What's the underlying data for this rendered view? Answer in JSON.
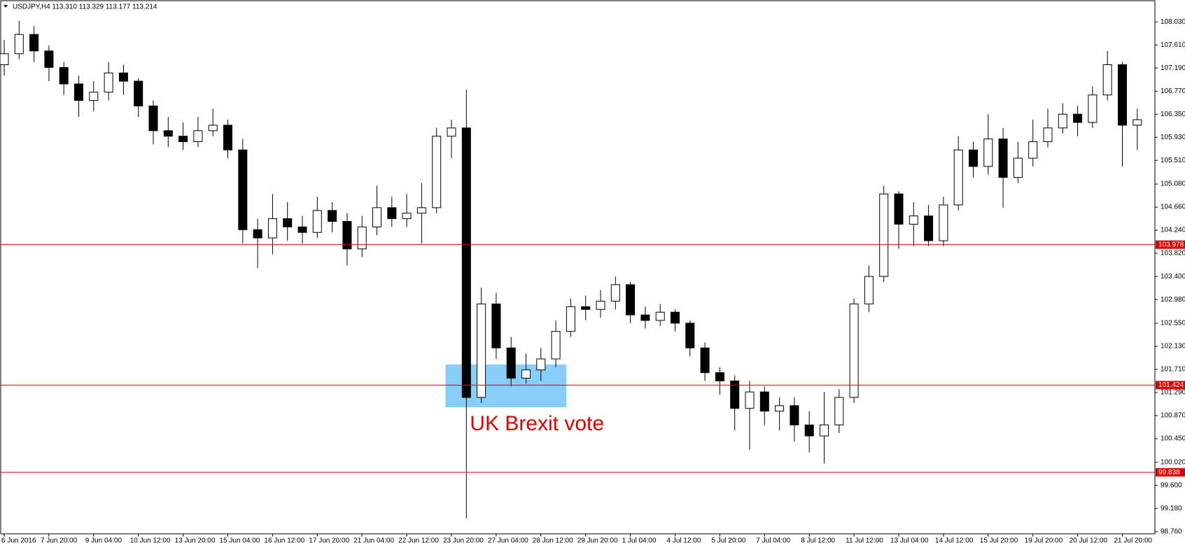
{
  "chart_data": {
    "type": "candlestick",
    "title": "USDJPY,H4  113.310 113.329 113.177 113.214",
    "annotation": "UK Brexit vote",
    "categories": [
      "6 Jun 2016",
      null,
      null,
      "7 Jun 20:00",
      null,
      null,
      "9 Jun 04:00",
      null,
      null,
      "10 Jun 12:00",
      null,
      null,
      "13 Jun 20:00",
      null,
      null,
      "15 Jun 04:00",
      null,
      null,
      "16 Jun 12:00",
      null,
      null,
      "17 Jun 20:00",
      null,
      null,
      "21 Jun 04:00",
      null,
      null,
      "22 Jun 12:00",
      null,
      null,
      "23 Jun 20:00",
      null,
      null,
      "27 Jun 04:00",
      null,
      null,
      "28 Jun 12:00",
      null,
      null,
      "29 Jun 20:00",
      null,
      null,
      "1 Jul 04:00",
      null,
      null,
      "4 Jul 12:00",
      null,
      null,
      "5 Jul 20:00",
      null,
      null,
      "7 Jul 04:00",
      null,
      null,
      "8 Jul 12:00",
      null,
      null,
      "11 Jul 12:00",
      null,
      null,
      "13 Jul 04:00",
      null,
      null,
      "14 Jul 12:00",
      null,
      null,
      "15 Jul 20:00",
      null,
      null,
      "19 Jul 20:00",
      null,
      null,
      "20 Jul 12:00",
      null,
      null,
      "21 Jul 20:00",
      null
    ],
    "open": [
      107.25,
      107.45,
      107.8,
      107.5,
      107.2,
      106.9,
      106.6,
      106.75,
      107.1,
      106.95,
      106.5,
      106.05,
      105.95,
      105.85,
      106.05,
      106.15,
      105.7,
      104.25,
      104.1,
      104.45,
      104.3,
      104.2,
      104.6,
      104.4,
      103.9,
      104.3,
      104.65,
      104.45,
      104.55,
      104.65,
      105.95,
      106.1,
      101.2,
      102.9,
      102.1,
      101.55,
      101.7,
      101.9,
      102.4,
      102.85,
      102.8,
      102.95,
      103.25,
      102.7,
      102.6,
      102.75,
      102.55,
      102.1,
      101.65,
      101.5,
      101.0,
      101.3,
      100.95,
      101.05,
      100.7,
      100.5,
      100.7,
      101.2,
      102.9,
      103.4,
      104.9,
      104.35,
      104.5,
      104.05,
      104.7,
      105.7,
      105.4,
      105.9,
      105.2,
      105.55,
      105.85,
      106.1,
      106.35,
      106.2,
      106.7,
      107.25,
      106.15
    ],
    "high": [
      107.7,
      108.05,
      107.95,
      107.6,
      107.3,
      107.05,
      106.95,
      107.3,
      107.25,
      107.0,
      106.6,
      106.3,
      106.2,
      106.3,
      106.45,
      106.25,
      105.9,
      104.45,
      104.9,
      104.75,
      104.5,
      104.85,
      104.75,
      104.55,
      104.5,
      105.05,
      104.85,
      104.9,
      105.1,
      106.1,
      106.25,
      106.8,
      103.2,
      103.1,
      102.3,
      102.0,
      102.1,
      102.6,
      103.0,
      103.05,
      103.15,
      103.4,
      103.3,
      102.85,
      102.9,
      102.8,
      102.6,
      102.2,
      101.75,
      101.6,
      101.5,
      101.4,
      101.2,
      101.2,
      100.95,
      101.3,
      101.35,
      103.0,
      103.6,
      105.05,
      104.95,
      104.75,
      104.7,
      104.85,
      105.95,
      105.85,
      106.35,
      106.1,
      105.85,
      106.25,
      106.45,
      106.55,
      106.5,
      106.85,
      107.5,
      107.3,
      106.45
    ],
    "low": [
      107.05,
      107.35,
      107.3,
      106.95,
      106.7,
      106.3,
      106.4,
      106.6,
      106.7,
      106.3,
      105.8,
      105.75,
      105.7,
      105.75,
      105.95,
      105.55,
      104.0,
      103.55,
      103.8,
      104.05,
      104.0,
      104.1,
      104.2,
      103.6,
      103.75,
      104.15,
      104.3,
      104.3,
      104.0,
      104.55,
      105.55,
      99.0,
      101.1,
      101.9,
      101.4,
      101.45,
      101.5,
      101.75,
      102.3,
      102.6,
      102.65,
      102.8,
      102.55,
      102.45,
      102.5,
      102.4,
      101.95,
      101.5,
      101.25,
      100.6,
      100.25,
      100.7,
      100.6,
      100.4,
      100.2,
      100.0,
      100.55,
      101.1,
      102.75,
      103.3,
      103.9,
      103.95,
      103.95,
      103.95,
      104.6,
      105.2,
      105.25,
      104.65,
      105.1,
      105.4,
      105.75,
      106.0,
      105.95,
      106.1,
      106.6,
      105.4,
      105.7
    ],
    "close": [
      107.45,
      107.8,
      107.5,
      107.2,
      106.9,
      106.6,
      106.75,
      107.1,
      106.95,
      106.5,
      106.05,
      105.95,
      105.85,
      106.05,
      106.15,
      105.7,
      104.25,
      104.1,
      104.45,
      104.3,
      104.2,
      104.6,
      104.4,
      103.9,
      104.3,
      104.65,
      104.45,
      104.55,
      104.65,
      105.95,
      106.1,
      101.2,
      102.9,
      102.1,
      101.55,
      101.7,
      101.9,
      102.4,
      102.85,
      102.8,
      102.95,
      103.25,
      102.7,
      102.6,
      102.75,
      102.55,
      102.1,
      101.65,
      101.5,
      101.0,
      101.3,
      100.95,
      101.05,
      100.7,
      100.5,
      100.7,
      101.2,
      102.9,
      103.4,
      104.9,
      104.35,
      104.5,
      104.05,
      104.7,
      105.7,
      105.4,
      105.9,
      105.2,
      105.55,
      105.85,
      106.1,
      106.35,
      106.2,
      106.7,
      107.25,
      106.15,
      106.25
    ],
    "levels": [
      103.978,
      101.424,
      99.838
    ],
    "level_color": "#e00000",
    "zone": [
      101.02,
      101.8
    ],
    "zone_color": "#87cefa",
    "ylim": [
      98.72,
      108.35
    ],
    "yticks": [
      {
        "value": 108.03,
        "label": "108.030"
      },
      {
        "value": 107.61,
        "label": "107.610"
      },
      {
        "value": 107.19,
        "label": "107.190"
      },
      {
        "value": 106.77,
        "label": "106.770"
      },
      {
        "value": 106.35,
        "label": "106.350"
      },
      {
        "value": 105.93,
        "label": "105.930"
      },
      {
        "value": 105.51,
        "label": "105.510"
      },
      {
        "value": 105.08,
        "label": "105.080"
      },
      {
        "value": 104.66,
        "label": "104.660"
      },
      {
        "value": 104.24,
        "label": "104.240"
      },
      {
        "value": 103.82,
        "label": "103.820"
      },
      {
        "value": 103.4,
        "label": "103.400"
      },
      {
        "value": 102.98,
        "label": "102.980"
      },
      {
        "value": 102.55,
        "label": "102.550"
      },
      {
        "value": 102.13,
        "label": "102.130"
      },
      {
        "value": 101.71,
        "label": "101.710"
      },
      {
        "value": 101.29,
        "label": "101.290"
      },
      {
        "value": 100.87,
        "label": "100.870"
      },
      {
        "value": 100.45,
        "label": "100.450"
      },
      {
        "value": 100.02,
        "label": "100.020"
      },
      {
        "value": 99.6,
        "label": "99.600"
      },
      {
        "value": 99.18,
        "label": "99.180"
      },
      {
        "value": 98.76,
        "label": "98.760"
      }
    ]
  }
}
